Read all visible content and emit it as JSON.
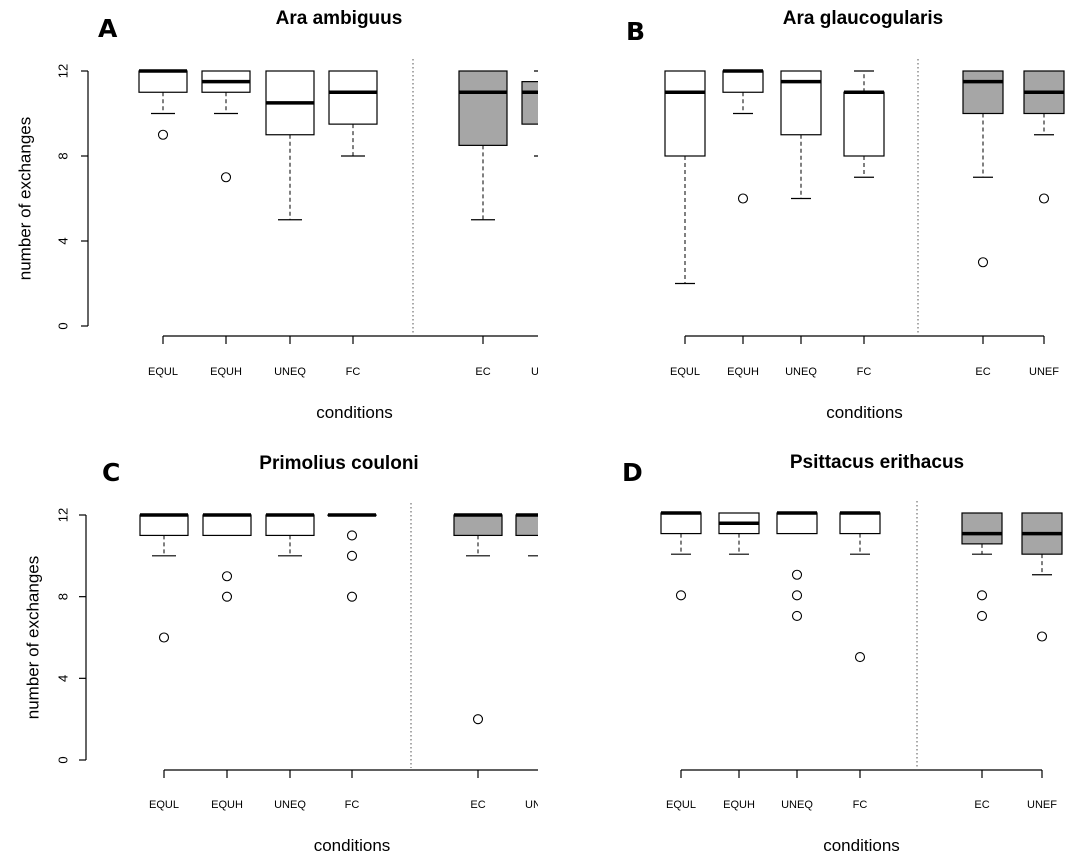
{
  "figure": {
    "xlabel": "conditions",
    "ylabel": "number of exchanges",
    "box_fill_colors": {
      "experimental": "#ffffff",
      "control": "#a6a6a6"
    }
  },
  "chart_data": [
    {
      "type": "box",
      "panel_letter": "A",
      "title": "Ara ambiguus",
      "xlabel": "conditions",
      "ylabel": "number of exchanges",
      "ylim": [
        0,
        12
      ],
      "yticks": [
        "0",
        "4",
        "8",
        "12"
      ],
      "categories": [
        "EQUL",
        "EQUH",
        "UNEQ",
        "FC",
        "EC",
        "UNEF"
      ],
      "boxes": [
        {
          "min": 10,
          "q1": 11,
          "median": 12,
          "q3": 12,
          "max": 12,
          "outliers": [
            9
          ],
          "fill": "#ffffff"
        },
        {
          "min": 10,
          "q1": 11,
          "median": 11.5,
          "q3": 12,
          "max": 12,
          "outliers": [
            7
          ],
          "fill": "#ffffff"
        },
        {
          "min": 5,
          "q1": 9,
          "median": 10.5,
          "q3": 12,
          "max": 12,
          "outliers": [],
          "fill": "#ffffff"
        },
        {
          "min": 8,
          "q1": 9.5,
          "median": 11,
          "q3": 12,
          "max": 12,
          "outliers": [],
          "fill": "#ffffff"
        },
        {
          "min": 5,
          "q1": 8.5,
          "median": 11,
          "q3": 12,
          "max": 12,
          "outliers": [],
          "fill": "#a6a6a6"
        },
        {
          "min": 8,
          "q1": 9.5,
          "median": 11,
          "q3": 11.5,
          "max": 12,
          "outliers": [],
          "fill": "#a6a6a6"
        }
      ]
    },
    {
      "type": "box",
      "panel_letter": "B",
      "title": "Ara glaucogularis",
      "xlabel": "conditions",
      "ylabel": "",
      "ylim": [
        0,
        12
      ],
      "yticks": [],
      "categories": [
        "EQUL",
        "EQUH",
        "UNEQ",
        "FC",
        "EC",
        "UNEF"
      ],
      "boxes": [
        {
          "min": 2,
          "q1": 8,
          "median": 11,
          "q3": 12,
          "max": 12,
          "outliers": [],
          "fill": "#ffffff"
        },
        {
          "min": 10,
          "q1": 11,
          "median": 12,
          "q3": 12,
          "max": 12,
          "outliers": [
            6
          ],
          "fill": "#ffffff"
        },
        {
          "min": 6,
          "q1": 9,
          "median": 11.5,
          "q3": 12,
          "max": 12,
          "outliers": [],
          "fill": "#ffffff"
        },
        {
          "min": 7,
          "q1": 8,
          "median": 11,
          "q3": 11,
          "max": 12,
          "outliers": [],
          "fill": "#ffffff"
        },
        {
          "min": 7,
          "q1": 10,
          "median": 11.5,
          "q3": 12,
          "max": 12,
          "outliers": [
            3
          ],
          "fill": "#a6a6a6"
        },
        {
          "min": 9,
          "q1": 10,
          "median": 11,
          "q3": 12,
          "max": 12,
          "outliers": [
            6
          ],
          "fill": "#a6a6a6"
        }
      ]
    },
    {
      "type": "box",
      "panel_letter": "C",
      "title": "Primolius couloni",
      "xlabel": "conditions",
      "ylabel": "number of exchanges",
      "ylim": [
        0,
        12
      ],
      "yticks": [
        "0",
        "4",
        "8",
        "12"
      ],
      "categories": [
        "EQUL",
        "EQUH",
        "UNEQ",
        "FC",
        "EC",
        "UNEF"
      ],
      "boxes": [
        {
          "min": 10,
          "q1": 11,
          "median": 12,
          "q3": 12,
          "max": 12,
          "outliers": [
            6
          ],
          "fill": "#ffffff"
        },
        {
          "min": 11,
          "q1": 11,
          "median": 12,
          "q3": 12,
          "max": 12,
          "outliers": [
            9,
            8
          ],
          "fill": "#ffffff"
        },
        {
          "min": 10,
          "q1": 11,
          "median": 12,
          "q3": 12,
          "max": 12,
          "outliers": [],
          "fill": "#ffffff"
        },
        {
          "min": 12,
          "q1": 12,
          "median": 12,
          "q3": 12,
          "max": 12,
          "outliers": [
            11,
            10,
            8
          ],
          "fill": "#ffffff"
        },
        {
          "min": 10,
          "q1": 11,
          "median": 12,
          "q3": 12,
          "max": 12,
          "outliers": [
            2
          ],
          "fill": "#a6a6a6"
        },
        {
          "min": 10,
          "q1": 11,
          "median": 12,
          "q3": 12,
          "max": 12,
          "outliers": [],
          "fill": "#a6a6a6"
        }
      ]
    },
    {
      "type": "box",
      "panel_letter": "D",
      "title": "Psittacus erithacus",
      "xlabel": "conditions",
      "ylabel": "",
      "ylim": [
        0,
        12
      ],
      "yticks": [],
      "categories": [
        "EQUL",
        "EQUH",
        "UNEQ",
        "FC",
        "EC",
        "UNEF"
      ],
      "boxes": [
        {
          "min": 10,
          "q1": 11,
          "median": 12,
          "q3": 12,
          "max": 12,
          "outliers": [
            8
          ],
          "fill": "#ffffff"
        },
        {
          "min": 10,
          "q1": 11,
          "median": 11.5,
          "q3": 12,
          "max": 12,
          "outliers": [],
          "fill": "#ffffff"
        },
        {
          "min": 11,
          "q1": 11,
          "median": 12,
          "q3": 12,
          "max": 12,
          "outliers": [
            9,
            8,
            7
          ],
          "fill": "#ffffff"
        },
        {
          "min": 10,
          "q1": 11,
          "median": 12,
          "q3": 12,
          "max": 12,
          "outliers": [
            5
          ],
          "fill": "#ffffff"
        },
        {
          "min": 10,
          "q1": 10.5,
          "median": 11,
          "q3": 12,
          "max": 12,
          "outliers": [
            8,
            7
          ],
          "fill": "#a6a6a6"
        },
        {
          "min": 9,
          "q1": 10,
          "median": 11,
          "q3": 12,
          "max": 12,
          "outliers": [
            6
          ],
          "fill": "#a6a6a6"
        }
      ]
    }
  ]
}
